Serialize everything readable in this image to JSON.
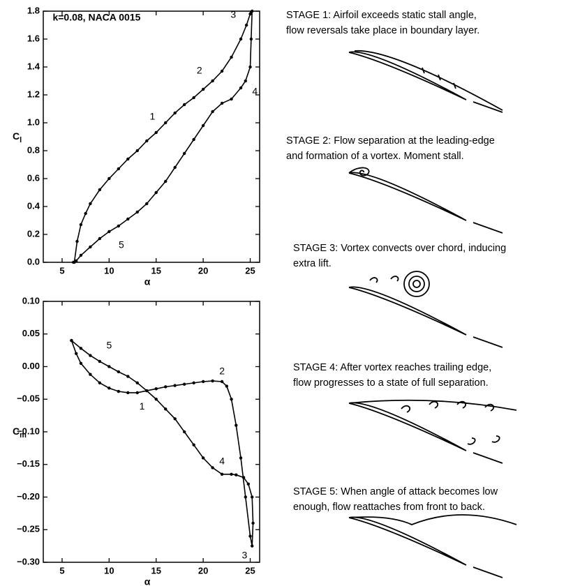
{
  "chart_data": [
    {
      "type": "line",
      "xlabel": "α",
      "ylabel": {
        "main": "C",
        "sub": "l"
      },
      "xlim": [
        3,
        26
      ],
      "ylim": [
        0,
        1.8
      ],
      "xticks": [
        5,
        10,
        15,
        20,
        25
      ],
      "yticks": [
        {
          "value": 0,
          "label": "0.0"
        },
        0.2,
        0.4,
        0.6,
        0.8,
        {
          "value": 1,
          "label": "1.0"
        },
        1.2,
        1.4,
        1.6,
        1.8
      ],
      "color": "#000000",
      "markers": true,
      "annotations": [
        "k=0.08, NACA 0015",
        "1",
        "2",
        "3",
        "4",
        "5"
      ],
      "x": [
        6.3,
        6.6,
        7,
        7.5,
        8,
        9,
        10,
        11,
        12,
        13,
        14,
        15,
        16,
        17,
        18,
        19,
        20,
        21,
        22,
        23,
        24,
        24.6,
        25,
        25.2,
        25.1,
        25,
        24.5,
        24,
        23,
        22,
        21,
        20,
        19,
        18,
        17,
        16,
        15,
        14,
        13,
        12,
        11,
        10,
        9,
        8,
        7,
        6.5,
        6.2
      ],
      "values": [
        0.0,
        0.15,
        0.27,
        0.35,
        0.42,
        0.52,
        0.6,
        0.67,
        0.74,
        0.8,
        0.87,
        0.93,
        1.0,
        1.07,
        1.13,
        1.18,
        1.24,
        1.3,
        1.37,
        1.47,
        1.6,
        1.7,
        1.78,
        1.8,
        1.6,
        1.4,
        1.3,
        1.25,
        1.17,
        1.14,
        1.08,
        0.98,
        0.88,
        0.78,
        0.68,
        0.58,
        0.5,
        0.42,
        0.36,
        0.31,
        0.26,
        0.22,
        0.17,
        0.11,
        0.05,
        0.01,
        0.0
      ]
    },
    {
      "type": "line",
      "xlabel": "α",
      "ylabel": {
        "main": "C",
        "sub": "m"
      },
      "xlim": [
        3,
        26
      ],
      "ylim": [
        -0.3,
        0.1
      ],
      "xticks": [
        5,
        10,
        15,
        20,
        25
      ],
      "yticks": [
        {
          "value": -0.3,
          "label": "−0.30"
        },
        {
          "value": -0.25,
          "label": "−0.25"
        },
        {
          "value": -0.2,
          "label": "−0.20"
        },
        {
          "value": -0.15,
          "label": "−0.15"
        },
        {
          "value": -0.1,
          "label": "−0.10"
        },
        {
          "value": -0.05,
          "label": "−0.05"
        },
        {
          "value": 0,
          "label": "0.00"
        },
        0.05,
        {
          "value": 0.1,
          "label": "0.10"
        }
      ],
      "color": "#000000",
      "markers": true,
      "annotations": [
        "5",
        "1",
        "2",
        "4",
        "3"
      ],
      "x": [
        6,
        6.5,
        7,
        8,
        9,
        10,
        11,
        12,
        13,
        14,
        15,
        16,
        17,
        18,
        19,
        20,
        21,
        22,
        22.5,
        23,
        23.5,
        24,
        24.5,
        25,
        25.2,
        25.3,
        25.2,
        24.8,
        24.3,
        23.5,
        23,
        22,
        21,
        20,
        19,
        18,
        17,
        16,
        15,
        14,
        13,
        12,
        11,
        10,
        9,
        8,
        7,
        6
      ],
      "values": [
        0.04,
        0.02,
        0.005,
        -0.012,
        -0.025,
        -0.033,
        -0.038,
        -0.04,
        -0.04,
        -0.037,
        -0.034,
        -0.031,
        -0.029,
        -0.027,
        -0.025,
        -0.023,
        -0.022,
        -0.023,
        -0.03,
        -0.05,
        -0.09,
        -0.14,
        -0.2,
        -0.26,
        -0.275,
        -0.24,
        -0.2,
        -0.18,
        -0.17,
        -0.166,
        -0.165,
        -0.165,
        -0.155,
        -0.14,
        -0.12,
        -0.1,
        -0.08,
        -0.065,
        -0.05,
        -0.037,
        -0.025,
        -0.015,
        -0.008,
        0.0,
        0.008,
        0.017,
        0.028,
        0.04
      ]
    }
  ],
  "stages": [
    [
      "STAGE 1:  Airfoil exceeds static stall angle,",
      "flow reversals take place in boundary layer."
    ],
    [
      "STAGE 2:  Flow separation at the leading-edge",
      "and formation of a vortex.  Moment stall."
    ],
    [
      "STAGE 3:  Vortex convects over chord, inducing",
      "extra lift."
    ],
    [
      "STAGE 4: After vortex reaches trailing edge,",
      "flow progresses to a state of full separation."
    ],
    [
      "STAGE 5:  When angle of attack becomes low",
      "enough, flow reattaches from front to back."
    ]
  ]
}
